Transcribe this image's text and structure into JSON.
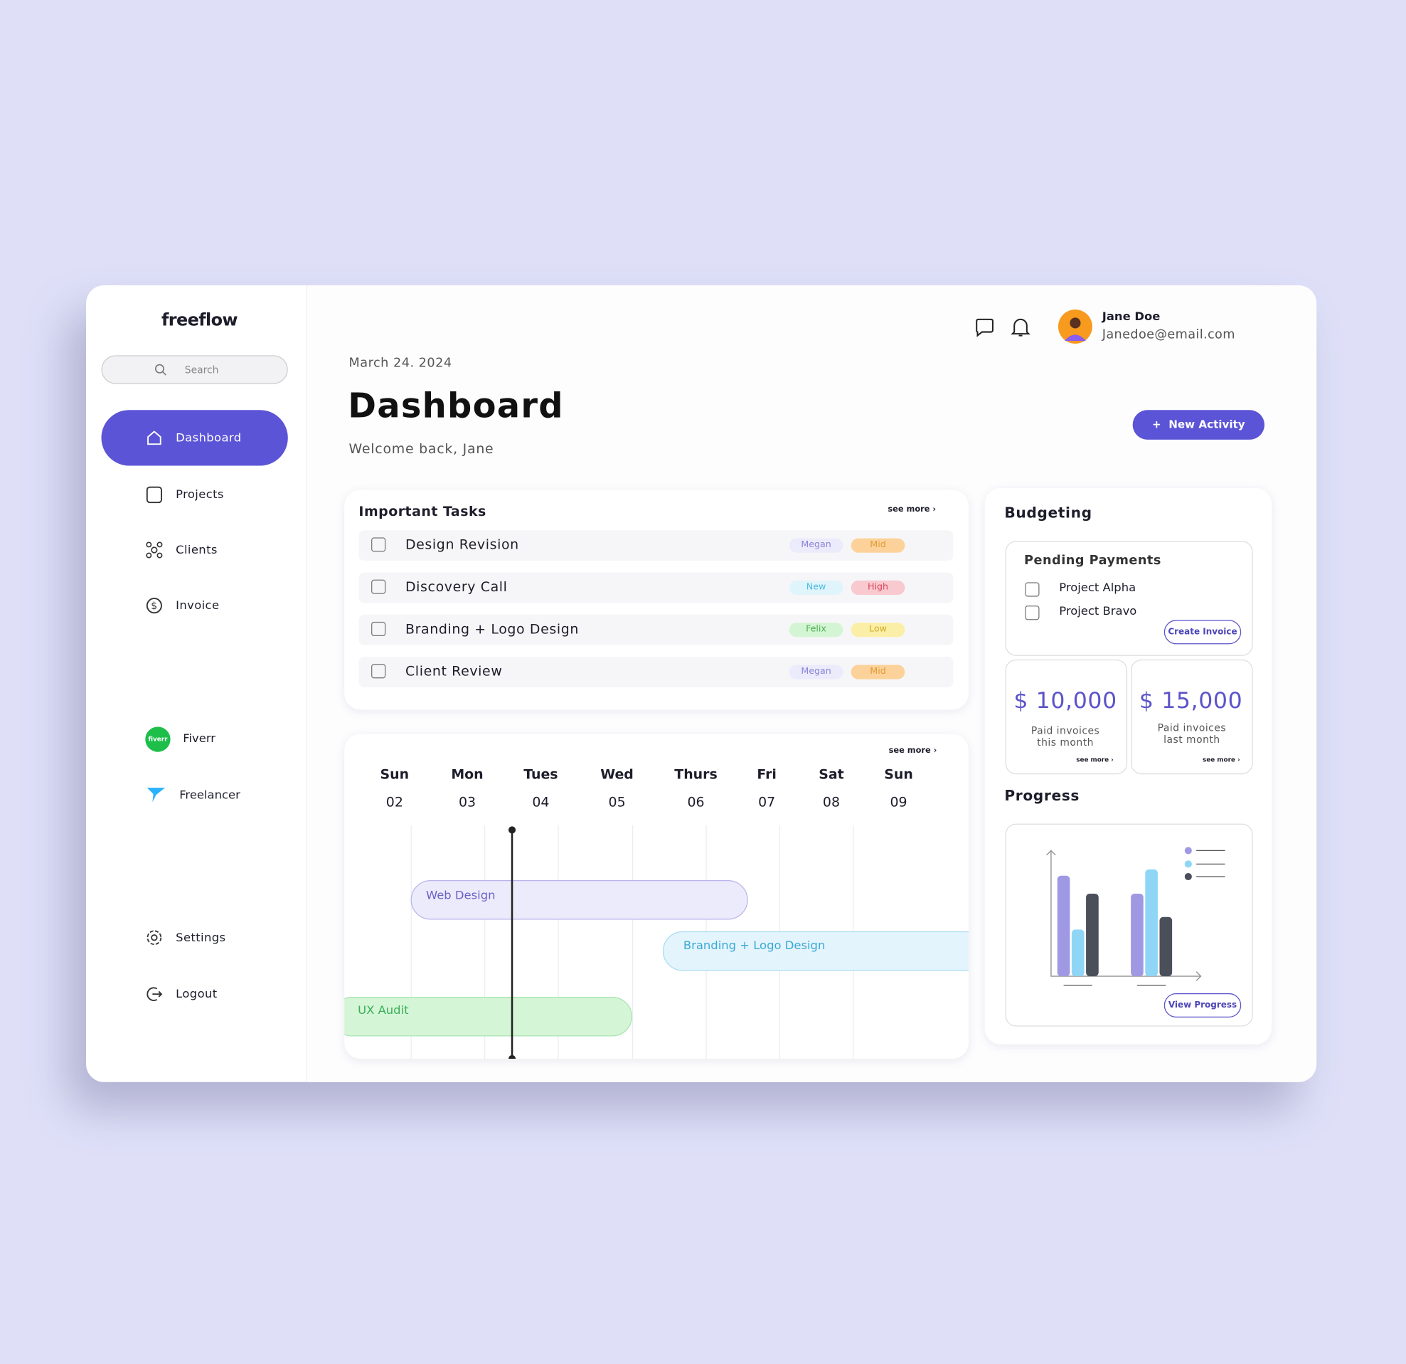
{
  "sidebar": {
    "logo": "freeflow",
    "search_placeholder": "Search",
    "nav": [
      "Dashboard",
      "Projects",
      "Clients",
      "Invoice"
    ],
    "integrations": [
      {
        "name": "Fiverr",
        "logo": "fiverr"
      },
      {
        "name": "Freelancer"
      }
    ],
    "bottom": [
      "Settings",
      "Logout"
    ]
  },
  "header": {
    "user_name": "Jane Doe",
    "user_email": "Janedoe@email.com",
    "date": "March 24. 2024",
    "title": "Dashboard",
    "subtitle": "Welcome back, Jane",
    "button": "New Activity"
  },
  "tasks": {
    "title": "Important Tasks",
    "see_more": "see more",
    "rows": [
      {
        "name": "Design Revision",
        "assignee": "Megan",
        "priority": "Mid"
      },
      {
        "name": "Discovery Call",
        "assignee": "New",
        "priority": "High"
      },
      {
        "name": "Branding + Logo Design",
        "assignee": "Felix",
        "priority": "Low"
      },
      {
        "name": "Client Review",
        "assignee": "Megan",
        "priority": "Mid"
      }
    ]
  },
  "calendar": {
    "see_more": "see more",
    "days": [
      {
        "day": "Sun",
        "date": "02"
      },
      {
        "day": "Mon",
        "date": "03"
      },
      {
        "day": "Tues",
        "date": "04"
      },
      {
        "day": "Wed",
        "date": "05"
      },
      {
        "day": "Thurs",
        "date": "06"
      },
      {
        "day": "Fri",
        "date": "07"
      },
      {
        "day": "Sat",
        "date": "08"
      },
      {
        "day": "Sun",
        "date": "09"
      }
    ],
    "events": [
      "Web Design",
      "Branding + Logo Design",
      "UX Audit"
    ]
  },
  "budgeting": {
    "title": "Budgeting",
    "pending_title": "Pending Payments",
    "pending": [
      "Project Alpha",
      "Project Bravo"
    ],
    "create_button": "Create Invoice",
    "cards": [
      {
        "amount": "$ 10,000",
        "label": "Paid invoices this month",
        "see_more": "see more"
      },
      {
        "amount": "$ 15,000",
        "label": "Paid invoices last month",
        "see_more": "see more"
      }
    ]
  },
  "progress": {
    "title": "Progress",
    "button": "View Progress"
  }
}
